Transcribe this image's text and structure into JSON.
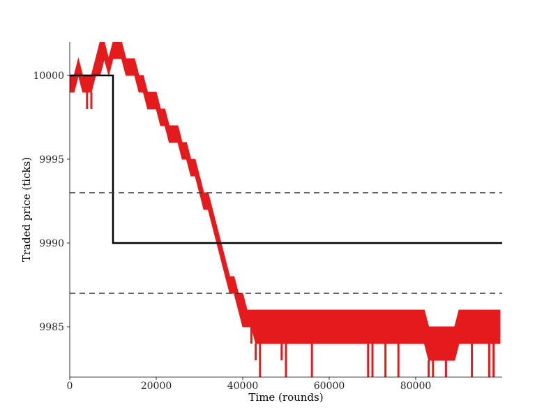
{
  "chart_data": {
    "type": "line",
    "title": "",
    "xlabel": "Time (rounds)",
    "ylabel": "Traded price (ticks)",
    "xlim": [
      0,
      100000
    ],
    "ylim": [
      9982,
      10002
    ],
    "x_ticks": [
      0,
      20000,
      40000,
      60000,
      80000
    ],
    "y_ticks": [
      9985,
      9990,
      9995,
      10000
    ],
    "x_tick_labels": [
      "0",
      "20000",
      "40000",
      "60000",
      "80000"
    ],
    "y_tick_labels": [
      "9985",
      "9990",
      "9995",
      "10000"
    ],
    "grid": false,
    "legend": "none",
    "series": [
      {
        "kind": "traded-price",
        "color": "#e41a1c",
        "band_lo": [
          [
            0,
            9999
          ],
          [
            1000,
            9999
          ],
          [
            2000,
            10000
          ],
          [
            3000,
            9999
          ],
          [
            4000,
            9999
          ],
          [
            5000,
            9999
          ],
          [
            6000,
            10000
          ],
          [
            7000,
            10000
          ],
          [
            8000,
            10001
          ],
          [
            9000,
            10000
          ],
          [
            10000,
            10001
          ],
          [
            11000,
            10001
          ],
          [
            12000,
            10001
          ],
          [
            13000,
            10000
          ],
          [
            14000,
            10000
          ],
          [
            15000,
            10000
          ],
          [
            16000,
            9999
          ],
          [
            17000,
            9999
          ],
          [
            18000,
            9998
          ],
          [
            19000,
            9998
          ],
          [
            20000,
            9998
          ],
          [
            21000,
            9997
          ],
          [
            22000,
            9997
          ],
          [
            23000,
            9996
          ],
          [
            24000,
            9996
          ],
          [
            25000,
            9996
          ],
          [
            26000,
            9995
          ],
          [
            27000,
            9995
          ],
          [
            28000,
            9994
          ],
          [
            29000,
            9994
          ],
          [
            30000,
            9993
          ],
          [
            31000,
            9992
          ],
          [
            32000,
            9992
          ],
          [
            33000,
            9991
          ],
          [
            34000,
            9990
          ],
          [
            35000,
            9989
          ],
          [
            36000,
            9988
          ],
          [
            37000,
            9987
          ],
          [
            38000,
            9987
          ],
          [
            39000,
            9986
          ],
          [
            40000,
            9985
          ],
          [
            41000,
            9985
          ],
          [
            42000,
            9985
          ],
          [
            43000,
            9984
          ],
          [
            45000,
            9984
          ],
          [
            50000,
            9984
          ],
          [
            55000,
            9984
          ],
          [
            60000,
            9984
          ],
          [
            65000,
            9984
          ],
          [
            67000,
            9984
          ],
          [
            70000,
            9984
          ],
          [
            75000,
            9984
          ],
          [
            80000,
            9984
          ],
          [
            82000,
            9984
          ],
          [
            83000,
            9983
          ],
          [
            85000,
            9983
          ],
          [
            88000,
            9983
          ],
          [
            89000,
            9983
          ],
          [
            90000,
            9984
          ],
          [
            92000,
            9984
          ],
          [
            95000,
            9984
          ],
          [
            98000,
            9984
          ],
          [
            99500,
            9984
          ]
        ],
        "band_hi": [
          [
            0,
            10000
          ],
          [
            1000,
            10000
          ],
          [
            2000,
            10001
          ],
          [
            3000,
            10000
          ],
          [
            4000,
            10000
          ],
          [
            5000,
            10000
          ],
          [
            6000,
            10001
          ],
          [
            7000,
            10002
          ],
          [
            8000,
            10002
          ],
          [
            9000,
            10001
          ],
          [
            10000,
            10002
          ],
          [
            11000,
            10002
          ],
          [
            12000,
            10002
          ],
          [
            13000,
            10001
          ],
          [
            14000,
            10001
          ],
          [
            15000,
            10001
          ],
          [
            16000,
            10000
          ],
          [
            17000,
            10000
          ],
          [
            18000,
            9999
          ],
          [
            19000,
            9999
          ],
          [
            20000,
            9999
          ],
          [
            21000,
            9998
          ],
          [
            22000,
            9998
          ],
          [
            23000,
            9997
          ],
          [
            24000,
            9997
          ],
          [
            25000,
            9997
          ],
          [
            26000,
            9996
          ],
          [
            27000,
            9996
          ],
          [
            28000,
            9995
          ],
          [
            29000,
            9995
          ],
          [
            30000,
            9994
          ],
          [
            31000,
            9993
          ],
          [
            32000,
            9993
          ],
          [
            33000,
            9992
          ],
          [
            34000,
            9991
          ],
          [
            35000,
            9990
          ],
          [
            36000,
            9989
          ],
          [
            37000,
            9988
          ],
          [
            38000,
            9988
          ],
          [
            39000,
            9987
          ],
          [
            40000,
            9987
          ],
          [
            41000,
            9986
          ],
          [
            42000,
            9986
          ],
          [
            43000,
            9986
          ],
          [
            45000,
            9986
          ],
          [
            50000,
            9986
          ],
          [
            55000,
            9986
          ],
          [
            60000,
            9986
          ],
          [
            65000,
            9986
          ],
          [
            67000,
            9986
          ],
          [
            70000,
            9986
          ],
          [
            75000,
            9986
          ],
          [
            80000,
            9986
          ],
          [
            82000,
            9986
          ],
          [
            83000,
            9985
          ],
          [
            85000,
            9985
          ],
          [
            88000,
            9985
          ],
          [
            89000,
            9985
          ],
          [
            90000,
            9986
          ],
          [
            92000,
            9986
          ],
          [
            95000,
            9986
          ],
          [
            98000,
            9986
          ],
          [
            99500,
            9986
          ]
        ],
        "spikes": [
          [
            4000,
            9998
          ],
          [
            5000,
            9998
          ],
          [
            42000,
            9984
          ],
          [
            43000,
            9983
          ],
          [
            44000,
            9982
          ],
          [
            49000,
            9983
          ],
          [
            50000,
            9982
          ],
          [
            56000,
            9982
          ],
          [
            69000,
            9982
          ],
          [
            70000,
            9982
          ],
          [
            73000,
            9982
          ],
          [
            76000,
            9982
          ],
          [
            83000,
            9981
          ],
          [
            84000,
            9982
          ],
          [
            87000,
            9982
          ],
          [
            93000,
            9982
          ],
          [
            97000,
            9982
          ],
          [
            98000,
            9981
          ]
        ]
      },
      {
        "kind": "step-line",
        "color": "#000000",
        "points": [
          [
            0,
            10000
          ],
          [
            10000,
            10000
          ],
          [
            10000,
            9990
          ],
          [
            100000,
            9990
          ]
        ]
      },
      {
        "kind": "upper-dashed",
        "color": "#333333",
        "points": [
          [
            0,
            9993
          ],
          [
            100000,
            9993
          ]
        ]
      },
      {
        "kind": "lower-dashed",
        "color": "#333333",
        "points": [
          [
            0,
            9987
          ],
          [
            100000,
            9987
          ]
        ]
      }
    ]
  }
}
